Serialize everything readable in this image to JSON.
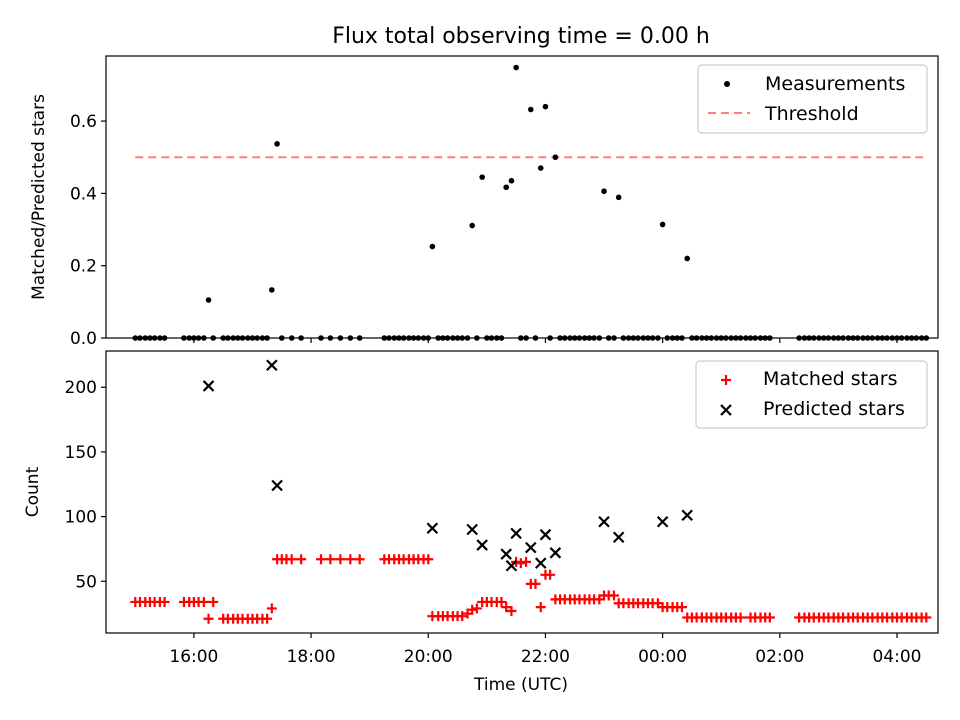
{
  "chart_data": [
    {
      "type": "scatter",
      "title": "Flux total observing time = 0.00 h",
      "xlabel": "",
      "ylabel": "Matched/Predicted stars",
      "ylim": [
        0,
        0.78
      ],
      "yticks": [
        0.0,
        0.2,
        0.4,
        0.6
      ],
      "ytick_labels": [
        "0.0",
        "0.2",
        "0.4",
        "0.6"
      ],
      "xlim_hours": [
        14.5,
        28.7
      ],
      "legend_position": "top-right",
      "threshold": {
        "name": "Threshold",
        "value": 0.5,
        "x_start_hours": 15.0,
        "x_end_hours": 28.5,
        "color": "#ff7f7f"
      },
      "series": [
        {
          "name": "Measurements",
          "color": "#000000",
          "points": [
            [
              16.25,
              0.105
            ],
            [
              17.33,
              0.133
            ],
            [
              17.42,
              0.537
            ],
            [
              20.07,
              0.253
            ],
            [
              20.75,
              0.311
            ],
            [
              20.92,
              0.445
            ],
            [
              21.33,
              0.417
            ],
            [
              21.42,
              0.435
            ],
            [
              21.5,
              0.748
            ],
            [
              21.75,
              0.632
            ],
            [
              21.92,
              0.47
            ],
            [
              22.0,
              0.64
            ],
            [
              22.17,
              0.5
            ],
            [
              23.0,
              0.406
            ],
            [
              23.25,
              0.389
            ],
            [
              24.0,
              0.314
            ],
            [
              24.42,
              0.22
            ]
          ],
          "zero_points_hours": [
            15.0,
            15.08,
            15.17,
            15.25,
            15.33,
            15.42,
            15.5,
            15.83,
            15.92,
            16.0,
            16.08,
            16.17,
            16.33,
            16.5,
            16.58,
            16.67,
            16.75,
            16.83,
            16.92,
            17.0,
            17.08,
            17.17,
            17.25,
            17.5,
            17.67,
            17.83,
            18.17,
            18.33,
            18.5,
            18.67,
            18.83,
            19.25,
            19.33,
            19.42,
            19.5,
            19.58,
            19.67,
            19.75,
            19.83,
            19.92,
            20.0,
            20.17,
            20.25,
            20.33,
            20.42,
            20.5,
            20.58,
            20.67,
            20.83,
            21.0,
            21.08,
            21.17,
            21.25,
            21.58,
            21.67,
            21.83,
            22.08,
            22.25,
            22.33,
            22.42,
            22.5,
            22.58,
            22.67,
            22.75,
            22.83,
            22.92,
            23.08,
            23.17,
            23.33,
            23.42,
            23.5,
            23.58,
            23.67,
            23.75,
            23.83,
            23.92,
            24.08,
            24.17,
            24.25,
            24.33,
            24.5,
            24.58,
            24.67,
            24.75,
            24.83,
            24.92,
            25.0,
            25.08,
            25.17,
            25.25,
            25.33,
            25.42,
            25.5,
            25.58,
            25.67,
            25.75,
            25.83,
            26.33,
            26.42,
            26.5,
            26.58,
            26.67,
            26.75,
            26.83,
            26.92,
            27.0,
            27.08,
            27.17,
            27.25,
            27.33,
            27.42,
            27.5,
            27.58,
            27.67,
            27.75,
            27.83,
            27.92,
            28.0,
            28.08,
            28.17,
            28.25,
            28.33,
            28.42,
            28.5
          ]
        }
      ]
    },
    {
      "type": "scatter",
      "xlabel": "Time (UTC)",
      "ylabel": "Count",
      "ylim": [
        10,
        228
      ],
      "yticks": [
        50,
        100,
        150,
        200
      ],
      "ytick_labels": [
        "50",
        "100",
        "150",
        "200"
      ],
      "xlim_hours": [
        14.5,
        28.7
      ],
      "xticks_hours": [
        16,
        18,
        20,
        22,
        24,
        26,
        28
      ],
      "xtick_labels": [
        "16:00",
        "18:00",
        "20:00",
        "22:00",
        "00:00",
        "02:00",
        "04:00"
      ],
      "legend_position": "top-right",
      "series": [
        {
          "name": "Matched stars",
          "color": "#ff0000",
          "marker": "plus",
          "points": [
            [
              15.0,
              34
            ],
            [
              15.08,
              34
            ],
            [
              15.17,
              34
            ],
            [
              15.25,
              34
            ],
            [
              15.33,
              34
            ],
            [
              15.42,
              34
            ],
            [
              15.5,
              34
            ],
            [
              15.83,
              34
            ],
            [
              15.92,
              34
            ],
            [
              16.0,
              34
            ],
            [
              16.08,
              34
            ],
            [
              16.17,
              34
            ],
            [
              16.25,
              21
            ],
            [
              16.33,
              34
            ],
            [
              16.5,
              21
            ],
            [
              16.58,
              21
            ],
            [
              16.67,
              21
            ],
            [
              16.75,
              21
            ],
            [
              16.83,
              21
            ],
            [
              16.92,
              21
            ],
            [
              17.0,
              21
            ],
            [
              17.08,
              21
            ],
            [
              17.17,
              21
            ],
            [
              17.25,
              21
            ],
            [
              17.33,
              29
            ],
            [
              17.42,
              67
            ],
            [
              17.5,
              67
            ],
            [
              17.58,
              67
            ],
            [
              17.67,
              67
            ],
            [
              17.83,
              67
            ],
            [
              18.17,
              67
            ],
            [
              18.33,
              67
            ],
            [
              18.5,
              67
            ],
            [
              18.67,
              67
            ],
            [
              18.83,
              67
            ],
            [
              19.25,
              67
            ],
            [
              19.33,
              67
            ],
            [
              19.42,
              67
            ],
            [
              19.5,
              67
            ],
            [
              19.58,
              67
            ],
            [
              19.67,
              67
            ],
            [
              19.75,
              67
            ],
            [
              19.83,
              67
            ],
            [
              19.92,
              67
            ],
            [
              20.0,
              67
            ],
            [
              20.07,
              23
            ],
            [
              20.17,
              23
            ],
            [
              20.25,
              23
            ],
            [
              20.33,
              23
            ],
            [
              20.42,
              23
            ],
            [
              20.5,
              23
            ],
            [
              20.58,
              23
            ],
            [
              20.67,
              25
            ],
            [
              20.75,
              28
            ],
            [
              20.83,
              29
            ],
            [
              20.92,
              34
            ],
            [
              21.0,
              34
            ],
            [
              21.08,
              34
            ],
            [
              21.17,
              34
            ],
            [
              21.25,
              34
            ],
            [
              21.33,
              30
            ],
            [
              21.42,
              27
            ],
            [
              21.5,
              65
            ],
            [
              21.58,
              64
            ],
            [
              21.67,
              65
            ],
            [
              21.75,
              48
            ],
            [
              21.83,
              48
            ],
            [
              21.92,
              30
            ],
            [
              22.0,
              55
            ],
            [
              22.08,
              55
            ],
            [
              22.17,
              36
            ],
            [
              22.25,
              36
            ],
            [
              22.33,
              36
            ],
            [
              22.42,
              36
            ],
            [
              22.5,
              36
            ],
            [
              22.58,
              36
            ],
            [
              22.67,
              36
            ],
            [
              22.75,
              36
            ],
            [
              22.83,
              36
            ],
            [
              22.92,
              36
            ],
            [
              23.0,
              39
            ],
            [
              23.08,
              39
            ],
            [
              23.17,
              39
            ],
            [
              23.25,
              33
            ],
            [
              23.33,
              33
            ],
            [
              23.42,
              33
            ],
            [
              23.5,
              33
            ],
            [
              23.58,
              33
            ],
            [
              23.67,
              33
            ],
            [
              23.75,
              33
            ],
            [
              23.83,
              33
            ],
            [
              23.92,
              33
            ],
            [
              24.0,
              30
            ],
            [
              24.08,
              30
            ],
            [
              24.17,
              30
            ],
            [
              24.25,
              30
            ],
            [
              24.33,
              30
            ],
            [
              24.42,
              22
            ],
            [
              24.5,
              22
            ],
            [
              24.58,
              22
            ],
            [
              24.67,
              22
            ],
            [
              24.75,
              22
            ],
            [
              24.83,
              22
            ],
            [
              24.92,
              22
            ],
            [
              25.0,
              22
            ],
            [
              25.08,
              22
            ],
            [
              25.17,
              22
            ],
            [
              25.25,
              22
            ],
            [
              25.33,
              22
            ],
            [
              25.5,
              22
            ],
            [
              25.58,
              22
            ],
            [
              25.67,
              22
            ],
            [
              25.75,
              22
            ],
            [
              25.83,
              22
            ],
            [
              26.33,
              22
            ],
            [
              26.42,
              22
            ],
            [
              26.5,
              22
            ],
            [
              26.58,
              22
            ],
            [
              26.67,
              22
            ],
            [
              26.75,
              22
            ],
            [
              26.83,
              22
            ],
            [
              26.92,
              22
            ],
            [
              27.0,
              22
            ],
            [
              27.08,
              22
            ],
            [
              27.17,
              22
            ],
            [
              27.25,
              22
            ],
            [
              27.33,
              22
            ],
            [
              27.42,
              22
            ],
            [
              27.5,
              22
            ],
            [
              27.58,
              22
            ],
            [
              27.67,
              22
            ],
            [
              27.75,
              22
            ],
            [
              27.83,
              22
            ],
            [
              27.92,
              22
            ],
            [
              28.0,
              22
            ],
            [
              28.08,
              22
            ],
            [
              28.17,
              22
            ],
            [
              28.25,
              22
            ],
            [
              28.33,
              22
            ],
            [
              28.42,
              22
            ],
            [
              28.5,
              22
            ]
          ]
        },
        {
          "name": "Predicted stars",
          "color": "#000000",
          "marker": "x",
          "points": [
            [
              16.25,
              201
            ],
            [
              17.33,
              217
            ],
            [
              17.42,
              124
            ],
            [
              20.07,
              91
            ],
            [
              20.75,
              90
            ],
            [
              20.92,
              78
            ],
            [
              21.33,
              71
            ],
            [
              21.42,
              62
            ],
            [
              21.5,
              87
            ],
            [
              21.75,
              76
            ],
            [
              21.92,
              64
            ],
            [
              22.0,
              86
            ],
            [
              22.17,
              72
            ],
            [
              23.0,
              96
            ],
            [
              23.25,
              84
            ],
            [
              24.0,
              96
            ],
            [
              24.42,
              101
            ]
          ]
        }
      ]
    }
  ]
}
